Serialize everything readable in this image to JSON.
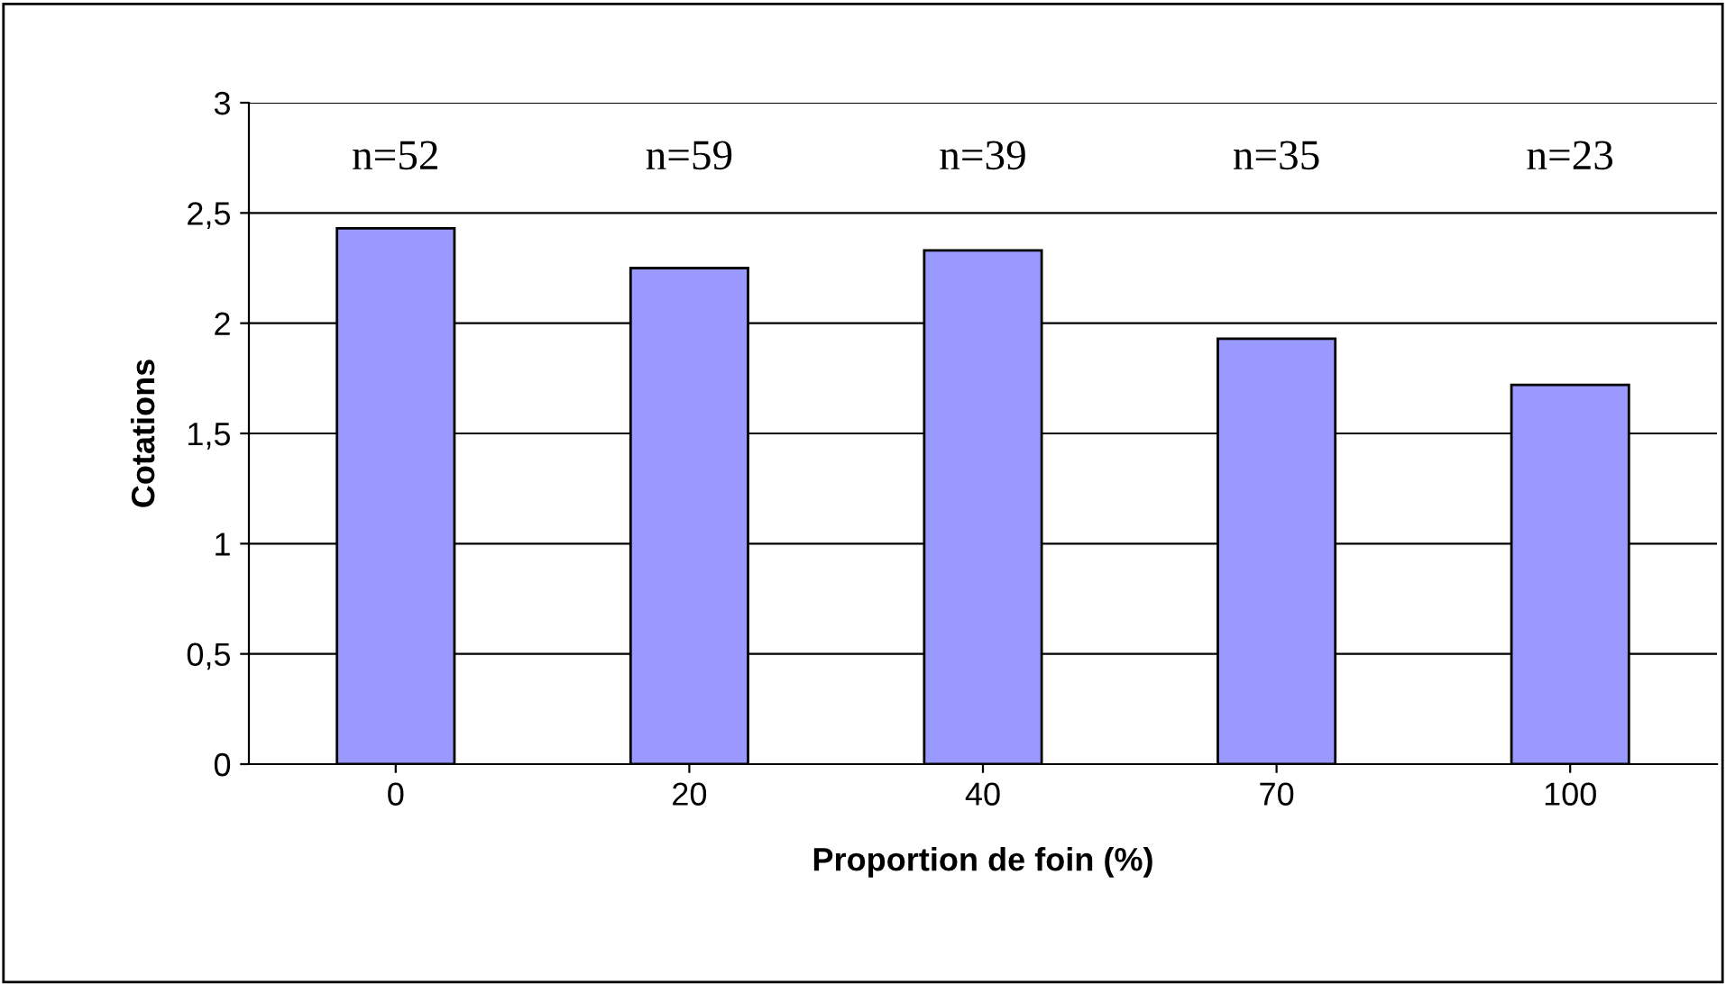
{
  "chart_data": {
    "type": "bar",
    "xlabel": "Proportion de foin (%)",
    "ylabel": "Cotations",
    "categories": [
      "0",
      "20",
      "40",
      "70",
      "100"
    ],
    "values": [
      2.43,
      2.25,
      2.33,
      1.93,
      1.72
    ],
    "color": "#9999ff",
    "ylim": [
      0,
      3
    ],
    "yticks": [
      0,
      {
        "value": 0.5,
        "label": "0,5"
      },
      1,
      {
        "value": 1.5,
        "label": "1,5"
      },
      2,
      {
        "value": 2.5,
        "label": "2,5"
      },
      3
    ],
    "grid": "y",
    "legend": false,
    "annotations": [
      "n=52",
      "n=59",
      "n=39",
      "n=35",
      "n=23"
    ]
  }
}
